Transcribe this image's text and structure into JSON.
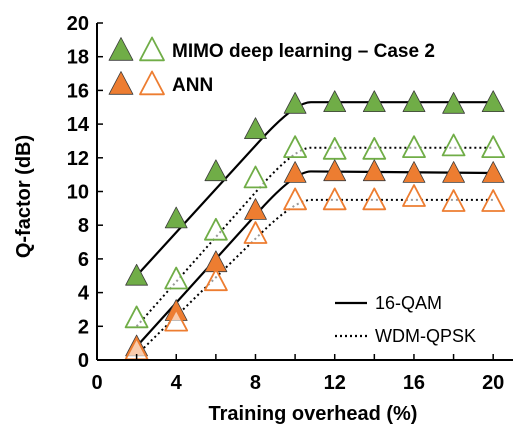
{
  "chart_data": {
    "type": "scatter",
    "xlabel": "Training overhead (%)",
    "ylabel": "Q-factor (dB)",
    "xlim": [
      0,
      21
    ],
    "ylim": [
      0,
      20
    ],
    "x_ticks": [
      "0",
      "4",
      "8",
      "12",
      "16",
      "20"
    ],
    "y_ticks": [
      "0",
      "2",
      "4",
      "6",
      "8",
      "10",
      "12",
      "14",
      "16",
      "18",
      "20"
    ],
    "grid": false,
    "colors": {
      "mimo": "#70ad47",
      "ann": "#ed7d31",
      "axis": "#000000"
    },
    "series": [
      {
        "group": "MIMO deep learning – Case 2",
        "format": "16-QAM",
        "marker": "filled-triangle",
        "color": "#70ad47",
        "x": [
          2,
          4,
          6,
          8,
          10,
          12,
          14,
          16,
          18,
          20
        ],
        "y": [
          5.0,
          8.4,
          11.2,
          13.7,
          15.2,
          15.3,
          15.3,
          15.3,
          15.2,
          15.3
        ]
      },
      {
        "group": "MIMO deep learning – Case 2",
        "format": "WDM-QPSK",
        "marker": "hollow-triangle",
        "color": "#70ad47",
        "x": [
          2,
          4,
          6,
          8,
          10,
          12,
          14,
          16,
          18,
          20
        ],
        "y": [
          2.5,
          4.8,
          7.7,
          10.8,
          12.6,
          12.5,
          12.5,
          12.6,
          12.7,
          12.6
        ]
      },
      {
        "group": "ANN",
        "format": "16-QAM",
        "marker": "filled-triangle",
        "color": "#ed7d31",
        "x": [
          2,
          4,
          6,
          8,
          10,
          12,
          14,
          16,
          18,
          20
        ],
        "y": [
          0.8,
          2.9,
          5.8,
          8.9,
          11.1,
          11.2,
          11.2,
          11.1,
          11.1,
          11.1
        ]
      },
      {
        "group": "ANN",
        "format": "WDM-QPSK",
        "marker": "hollow-triangle",
        "color": "#ed7d31",
        "x": [
          2,
          4,
          6,
          8,
          10,
          12,
          14,
          16,
          18,
          20
        ],
        "y": [
          0.6,
          2.3,
          4.7,
          7.5,
          9.5,
          9.5,
          9.5,
          9.7,
          9.4,
          9.4
        ]
      }
    ],
    "fit_lines": [
      {
        "format": "16-QAM",
        "style": "solid",
        "points": [
          [
            2,
            5.0
          ],
          [
            10,
            15.3
          ],
          [
            20,
            15.3
          ]
        ]
      },
      {
        "format": "WDM-QPSK",
        "style": "dotted",
        "points": [
          [
            2,
            2.0
          ],
          [
            10,
            12.6
          ],
          [
            20,
            12.6
          ]
        ]
      },
      {
        "format": "16-QAM",
        "style": "solid",
        "points": [
          [
            2,
            0.8
          ],
          [
            10,
            11.2
          ],
          [
            20,
            11.1
          ]
        ]
      },
      {
        "format": "WDM-QPSK",
        "style": "dotted",
        "points": [
          [
            2,
            0.3
          ],
          [
            10,
            9.5
          ],
          [
            20,
            9.5
          ]
        ]
      }
    ],
    "legend_groups": [
      {
        "label": "MIMO deep learning – Case 2",
        "color": "#70ad47"
      },
      {
        "label": "ANN",
        "color": "#ed7d31"
      }
    ],
    "legend_lines": [
      {
        "label": "16-QAM",
        "style": "solid"
      },
      {
        "label": "WDM-QPSK",
        "style": "dotted"
      }
    ],
    "legend_groups_position": "top-left",
    "legend_lines_position": "bottom-right"
  }
}
